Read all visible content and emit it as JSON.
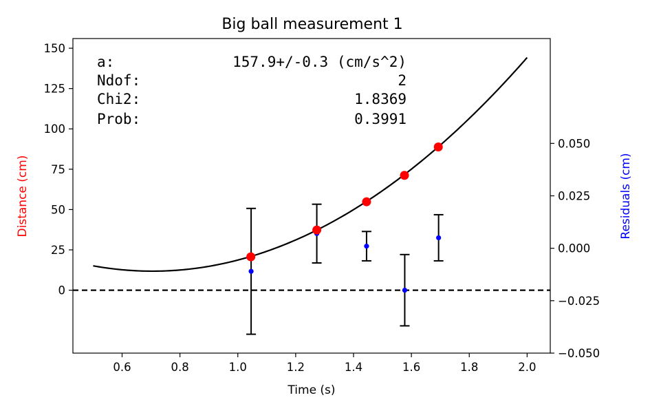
{
  "chart_data": {
    "type": "scatter",
    "title": "Big ball measurement 1",
    "xlabel": "Time (s)",
    "ylabel": "Distance (cm)",
    "ylabel_right": "Residuals (cm)",
    "colors": {
      "data": "#ff0000",
      "residuals": "#0000ff",
      "fit": "#000000",
      "left_label": "#ff0000",
      "right_label": "#0000ff"
    },
    "xlim": [
      0.43,
      2.08
    ],
    "ylim": [
      -39,
      156
    ],
    "ylim_right": [
      -0.05,
      0.1
    ],
    "x_ticks": [
      "0.6",
      "0.8",
      "1.0",
      "1.2",
      "1.4",
      "1.6",
      "1.8",
      "2.0"
    ],
    "y_ticks": [
      "0",
      "25",
      "50",
      "75",
      "100",
      "125",
      "150"
    ],
    "y_ticks_right": [
      "−0.050",
      "−0.025",
      "0.000",
      "0.025",
      "0.050"
    ],
    "measurements": {
      "name": "",
      "x": [
        1.045,
        1.273,
        1.445,
        1.576,
        1.693
      ],
      "y": [
        20.7,
        37.3,
        54.8,
        71.2,
        88.8
      ]
    },
    "residuals": {
      "name": "",
      "x": [
        1.046,
        1.273,
        1.445,
        1.577,
        1.694
      ],
      "y": [
        -0.011,
        0.007,
        0.001,
        -0.02,
        0.005
      ],
      "err": [
        0.03,
        0.014,
        0.007,
        0.017,
        0.011
      ]
    },
    "fit_curve": {
      "a": 157.9,
      "t0": 0.705,
      "y0": 11.8,
      "x_range": [
        0.5,
        2.0
      ]
    },
    "zero_line": 0,
    "fit_box": {
      "rows": [
        {
          "label": "a:",
          "value": "157.9+/-0.3 (cm/s^2)"
        },
        {
          "label": "Ndof:",
          "value": "2"
        },
        {
          "label": "Chi2:",
          "value": "1.8369"
        },
        {
          "label": "Prob:",
          "value": "0.3991"
        }
      ]
    }
  }
}
